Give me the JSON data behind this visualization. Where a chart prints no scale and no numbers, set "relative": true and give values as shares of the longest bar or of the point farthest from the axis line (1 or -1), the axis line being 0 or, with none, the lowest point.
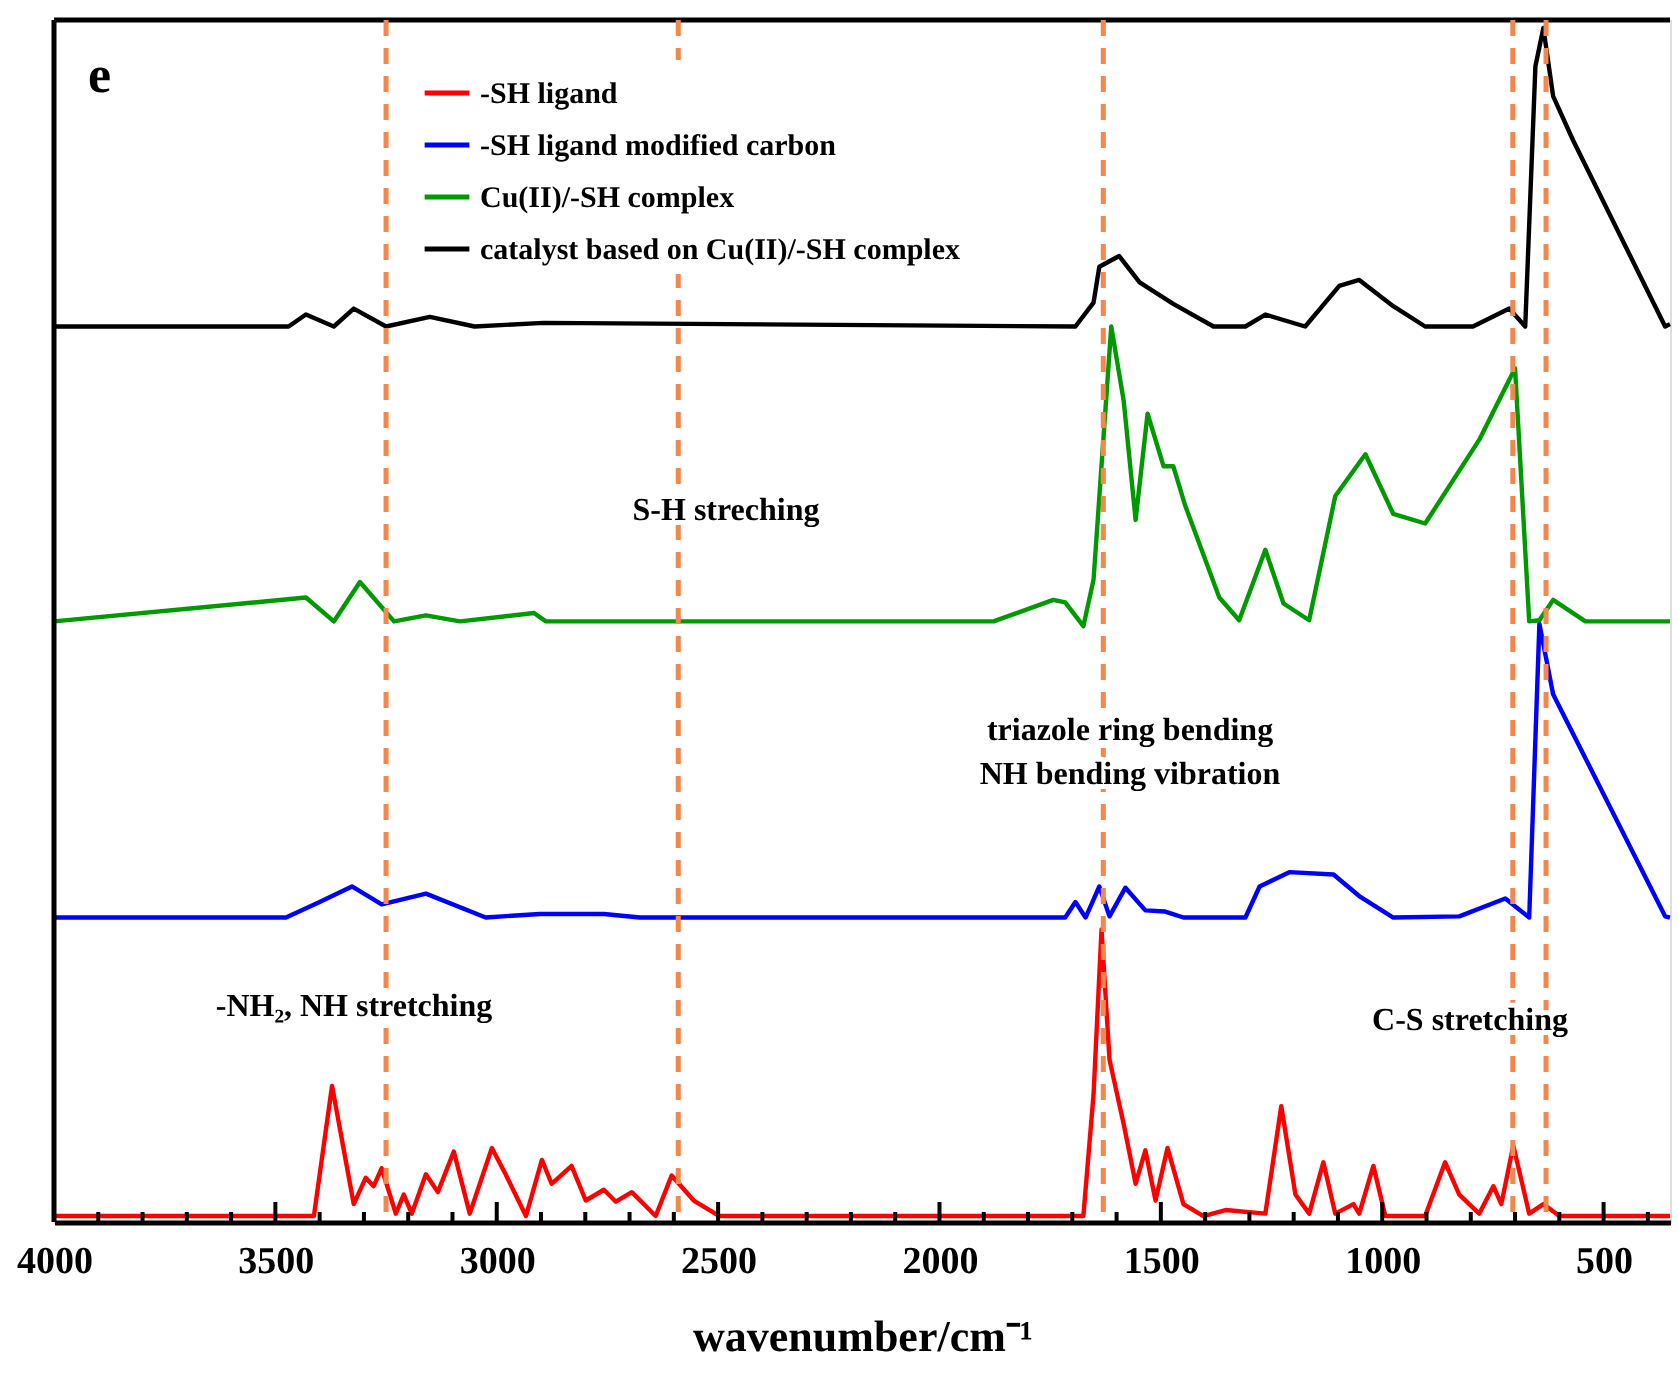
{
  "chart_data": {
    "type": "line",
    "relative": true,
    "xlabel": "wavenumber/cm⁻¹",
    "xlim": [
      4000,
      350
    ],
    "xticks": [
      4000,
      {
        "value": 3900,
        "label": null
      },
      {
        "value": 3800,
        "label": null
      },
      {
        "value": 3700,
        "label": null
      },
      {
        "value": 3600,
        "label": null
      },
      3500,
      {
        "value": 3400,
        "label": null
      },
      {
        "value": 3300,
        "label": null
      },
      {
        "value": 3200,
        "label": null
      },
      {
        "value": 3100,
        "label": null
      },
      3000,
      {
        "value": 2900,
        "label": null
      },
      {
        "value": 2800,
        "label": null
      },
      {
        "value": 2700,
        "label": null
      },
      {
        "value": 2600,
        "label": null
      },
      2500,
      {
        "value": 2400,
        "label": null
      },
      {
        "value": 2300,
        "label": null
      },
      {
        "value": 2200,
        "label": null
      },
      {
        "value": 2100,
        "label": null
      },
      2000,
      {
        "value": 1900,
        "label": null
      },
      {
        "value": 1800,
        "label": null
      },
      {
        "value": 1700,
        "label": null
      },
      {
        "value": 1600,
        "label": null
      },
      1500,
      {
        "value": 1400,
        "label": null
      },
      {
        "value": 1300,
        "label": null
      },
      {
        "value": 1200,
        "label": null
      },
      {
        "value": 1100,
        "label": null
      },
      1000,
      {
        "value": 900,
        "label": null
      },
      {
        "value": 800,
        "label": null
      },
      {
        "value": 700,
        "label": null
      },
      {
        "value": 600,
        "label": null
      },
      500,
      {
        "value": 400,
        "label": null
      }
    ],
    "legend": "top left",
    "marker": "none",
    "line_style": "solid",
    "grid": false,
    "annotations": [
      "e",
      "S-H streching",
      "triazole ring bending\nNH bending vibration",
      "-NH₂, NH stretching",
      "C-S stretching"
    ],
    "ref_lines": [
      {
        "axis": "x",
        "value": 3250,
        "color": "#f4874b",
        "line_style": "dashed"
      },
      {
        "axis": "x",
        "value": 2590,
        "color": "#f4874b",
        "line_style": "dashed"
      },
      {
        "axis": "x",
        "value": 1630,
        "color": "#f4874b",
        "line_style": "dashed"
      },
      {
        "axis": "x",
        "value": 705,
        "color": "#f4874b",
        "line_style": "dashed"
      },
      {
        "axis": "x",
        "value": 630,
        "color": "#f4874b",
        "line_style": "dashed"
      }
    ],
    "series": [
      {
        "name": "-SH ligand",
        "color": "#ff0000",
        "x": [
          4000,
          3413,
          3372,
          3323,
          3296,
          3278,
          3260,
          3228,
          3210,
          3192,
          3160,
          3133,
          3097,
          3061,
          3011,
          2980,
          2934,
          2898,
          2876,
          2831,
          2799,
          2758,
          2731,
          2695,
          2641,
          2605,
          2555,
          2497,
          1675,
          1652,
          1634,
          1616,
          1584,
          1557,
          1535,
          1512,
          1485,
          1449,
          1404,
          1354,
          1264,
          1228,
          1196,
          1165,
          1133,
          1106,
          1065,
          1052,
          1020,
          993,
          903,
          858,
          826,
          781,
          749,
          731,
          704,
          668,
          636,
          600,
          350
        ],
        "values": [
          0.005,
          0.005,
          0.114,
          0.015,
          0.037,
          0.03,
          0.045,
          0.007,
          0.023,
          0.007,
          0.04,
          0.025,
          0.059,
          0.007,
          0.062,
          0.04,
          0.005,
          0.052,
          0.032,
          0.047,
          0.018,
          0.027,
          0.017,
          0.025,
          0.005,
          0.039,
          0.018,
          0.005,
          0.005,
          0.107,
          0.245,
          0.136,
          0.082,
          0.032,
          0.06,
          0.018,
          0.062,
          0.015,
          0.005,
          0.01,
          0.007,
          0.097,
          0.023,
          0.007,
          0.05,
          0.007,
          0.015,
          0.007,
          0.047,
          0.005,
          0.005,
          0.05,
          0.023,
          0.007,
          0.03,
          0.015,
          0.064,
          0.007,
          0.015,
          0.005,
          0.005
        ]
      },
      {
        "name": "-SH ligand modified carbon",
        "color": "#0000ff",
        "x": [
          4000,
          3476,
          3400,
          3327,
          3260,
          3160,
          3025,
          2903,
          2758,
          2677,
          1716,
          1693,
          1670,
          1639,
          1616,
          1580,
          1535,
          1490,
          1449,
          1309,
          1277,
          1210,
          1110,
          1052,
          975,
          826,
          722,
          668,
          645,
          614,
          569,
          361,
          350
        ],
        "values": [
          0.255,
          0.255,
          0.268,
          0.281,
          0.266,
          0.275,
          0.255,
          0.258,
          0.258,
          0.255,
          0.255,
          0.268,
          0.255,
          0.281,
          0.256,
          0.28,
          0.261,
          0.26,
          0.255,
          0.255,
          0.281,
          0.293,
          0.291,
          0.273,
          0.255,
          0.256,
          0.271,
          0.255,
          0.501,
          0.442,
          0.409,
          0.256,
          0.255
        ]
      },
      {
        "name": "Cu(II)/-SH complex",
        "color": "#009900",
        "x": [
          4000,
          3431,
          3368,
          3309,
          3232,
          3160,
          3083,
          2916,
          2889,
          1878,
          1743,
          1716,
          1675,
          1652,
          1612,
          1584,
          1557,
          1530,
          1494,
          1472,
          1445,
          1368,
          1323,
          1264,
          1223,
          1165,
          1106,
          1038,
          975,
          903,
          781,
          700,
          668,
          645,
          614,
          541,
          350
        ],
        "values": [
          0.503,
          0.523,
          0.503,
          0.536,
          0.503,
          0.508,
          0.503,
          0.51,
          0.503,
          0.503,
          0.521,
          0.519,
          0.499,
          0.538,
          0.75,
          0.688,
          0.588,
          0.677,
          0.633,
          0.633,
          0.6,
          0.523,
          0.504,
          0.563,
          0.518,
          0.504,
          0.608,
          0.643,
          0.593,
          0.585,
          0.655,
          0.715,
          0.503,
          0.504,
          0.521,
          0.503,
          0.503
        ]
      },
      {
        "name": "catalyst based on Cu(II)/-SH complex",
        "color": "#000000",
        "x": [
          4000,
          3470,
          3431,
          3368,
          3323,
          3250,
          3151,
          3050,
          2894,
          1693,
          1652,
          1639,
          1594,
          1548,
          1472,
          1381,
          1309,
          1264,
          1174,
          1097,
          1052,
          975,
          903,
          795,
          713,
          677,
          654,
          636,
          614,
          569,
          361,
          350
        ],
        "values": [
          0.75,
          0.75,
          0.76,
          0.75,
          0.765,
          0.75,
          0.758,
          0.75,
          0.753,
          0.75,
          0.77,
          0.8,
          0.809,
          0.787,
          0.769,
          0.75,
          0.75,
          0.76,
          0.75,
          0.784,
          0.789,
          0.767,
          0.75,
          0.75,
          0.765,
          0.75,
          0.968,
          1.0,
          0.943,
          0.906,
          0.75,
          0.752
        ]
      }
    ]
  }
}
